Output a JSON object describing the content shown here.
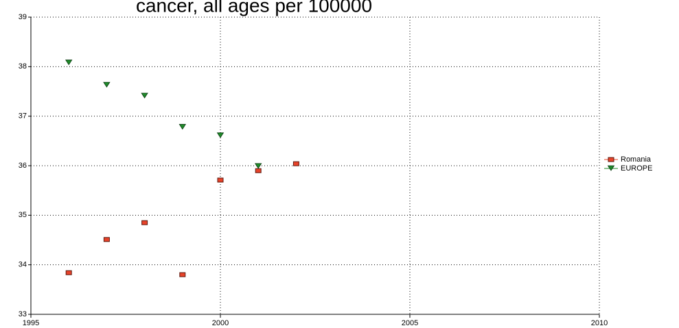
{
  "chart_data": {
    "type": "scatter",
    "title": "cancer, all ages per 100000",
    "series": [
      {
        "name": "Romania",
        "color": "#e8432a",
        "marker": "square",
        "x": [
          1996,
          1997,
          1998,
          1999,
          2000,
          2001,
          2002
        ],
        "values": [
          33.84,
          34.51,
          34.85,
          33.8,
          35.71,
          35.9,
          36.04
        ]
      },
      {
        "name": "EUROPE",
        "color": "#1f8a2a",
        "marker": "triangle-down",
        "x": [
          1996,
          1997,
          1998,
          1999,
          2000,
          2001
        ],
        "values": [
          38.08,
          37.63,
          37.41,
          36.78,
          36.61,
          35.99
        ]
      }
    ],
    "xlim": [
      1995,
      2010
    ],
    "xticks": [
      1995,
      2000,
      2005,
      2010
    ],
    "ylim": [
      33,
      39
    ],
    "yticks": [
      33,
      34,
      35,
      36,
      37,
      38,
      39
    ],
    "grid": true,
    "legend": "right"
  }
}
